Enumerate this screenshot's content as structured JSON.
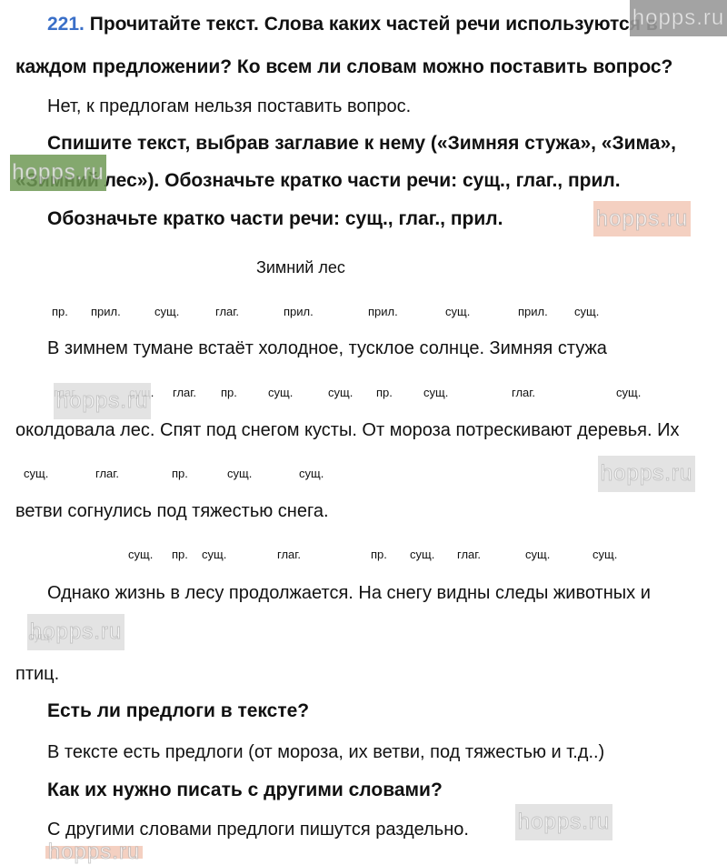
{
  "task": {
    "number": "221.",
    "question_line1": "Прочитайте текст. Слова каких частей речи используются в",
    "question_line2": "каждом предложении? Ко всем ли словам можно поставить вопрос?",
    "answer1": "Нет, к предлогам нельзя поставить вопрос.",
    "instruction_line1": "Спишите текст, выбрав заглавие к нему («Зимняя стужа», «Зима»,",
    "instruction_line2": "«Зимний лес»). Обозначьте кратко части речи: сущ., глаг., прил.",
    "instruction2": "Обозначьте кратко части речи: сущ., глаг., прил."
  },
  "text": {
    "title": "Зимний лес",
    "lines": [
      "В зимнем тумане встаёт холодное, тусклое солнце. Зимняя стужа",
      "околдовала лес. Спят под снегом кусты. От мороза потрескивают деревья. Их",
      "ветви согнулись под тяжестью снега.",
      "Однако жизнь в лесу продолжается. На снегу видны следы животных и",
      "птиц."
    ],
    "labels": [
      [
        "пр.",
        "прил.",
        "сущ.",
        "глаг.",
        "прил.",
        "прил.",
        "сущ.",
        "прил.",
        "сущ."
      ],
      [
        "глаг.",
        "сущ.",
        "глаг.",
        "пр.",
        "сущ.",
        "сущ.",
        "пр.",
        "сущ.",
        "глаг.",
        "сущ."
      ],
      [
        "сущ.",
        "глаг.",
        "пр.",
        "сущ.",
        "сущ."
      ],
      [
        "сущ.",
        "пр.",
        "сущ.",
        "глаг.",
        "пр.",
        "сущ.",
        "глаг.",
        "сущ.",
        "сущ."
      ],
      [
        "сущ."
      ]
    ]
  },
  "questions": [
    {
      "q": "Есть ли предлоги в тексте?",
      "a": "В тексте есть предлоги (от мороза, их ветви, под тяжестью и т.д..)"
    },
    {
      "q": "Как их нужно писать с другими словами?",
      "a": "С другими словами предлоги пишутся раздельно."
    }
  ],
  "watermark": {
    "text": "hopps.ru",
    "colors": {
      "gray": "#9a9a9a",
      "light_gray": "#e0e0e0",
      "green": "#6f9a55",
      "pink": "#f3cbbb"
    }
  },
  "colors": {
    "number": "#3a6fc8",
    "text": "#111111"
  }
}
